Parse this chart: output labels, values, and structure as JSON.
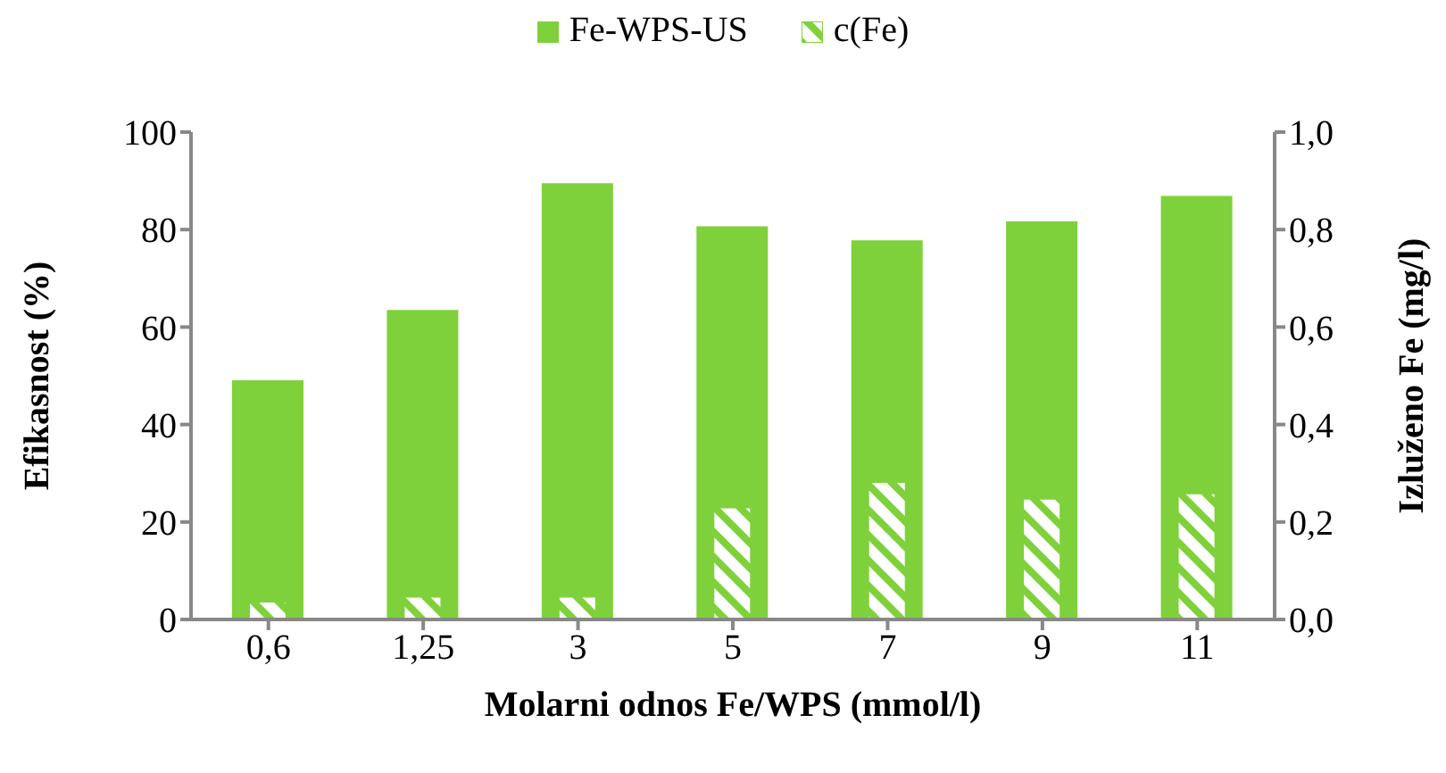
{
  "chart_data": {
    "type": "bar",
    "categories": [
      "0,6",
      "1,25",
      "3",
      "5",
      "7",
      "9",
      "11"
    ],
    "series": [
      {
        "name": "Fe-WPS-US",
        "color": "#7fd13b",
        "values": [
          49.1,
          63.5,
          89.5,
          80.7,
          77.8,
          81.7,
          86.9
        ]
      },
      {
        "name": "c(Fe)",
        "color": "#7fd13b",
        "axis": "y2",
        "values": [
          0.035,
          0.045,
          0.045,
          0.228,
          0.28,
          0.246,
          0.257
        ]
      }
    ],
    "xlabel": "Molarni odnos Fe/WPS (mmol/l)",
    "ylabel": "Efikasnost (%)",
    "y2label": "Izluženo Fe (mg/l)",
    "ylim": [
      0,
      100
    ],
    "yticks": [
      0,
      20,
      40,
      60,
      80,
      100
    ],
    "y2lim": [
      0,
      1
    ],
    "y2ticks": [
      {
        "value": 0,
        "label": "0,0"
      },
      {
        "value": 0.2,
        "label": "0,2"
      },
      {
        "value": 0.4,
        "label": "0,4"
      },
      {
        "value": 0.6,
        "label": "0,6"
      },
      {
        "value": 0.8,
        "label": "0,8"
      },
      {
        "value": 1,
        "label": "1,0"
      }
    ],
    "legend": "top",
    "grid": false
  }
}
